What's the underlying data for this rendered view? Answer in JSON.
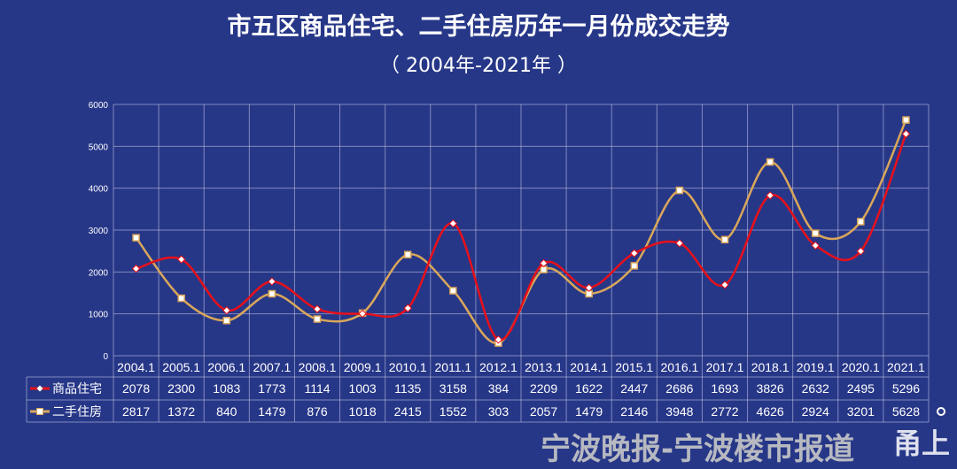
{
  "chart_data": {
    "type": "line",
    "title": "市五区商品住宅、二手住房历年一月份成交走势",
    "subtitle": "（ 2004年-2021年 ）",
    "categories": [
      "2004.1",
      "2005.1",
      "2006.1",
      "2007.1",
      "2008.1",
      "2009.1",
      "2010.1",
      "2011.1",
      "2012.1",
      "2013.1",
      "2014.1",
      "2015.1",
      "2016.1",
      "2017.1",
      "2018.1",
      "2019.1",
      "2020.1",
      "2021.1"
    ],
    "series": [
      {
        "name": "商品住宅",
        "color": "#e8101a",
        "marker": "diamond",
        "values": [
          2078,
          2300,
          1083,
          1773,
          1114,
          1003,
          1135,
          3158,
          384,
          2209,
          1622,
          2447,
          2686,
          1693,
          3826,
          2632,
          2495,
          5296
        ]
      },
      {
        "name": "二手住房",
        "color": "#d9a75a",
        "marker": "square",
        "values": [
          2817,
          1372,
          840,
          1479,
          876,
          1018,
          2415,
          1552,
          303,
          2057,
          1479,
          2146,
          3948,
          2772,
          4626,
          2924,
          3201,
          5628
        ]
      }
    ],
    "ylim": [
      0,
      6000
    ],
    "yticks": [
      0,
      1000,
      2000,
      3000,
      4000,
      5000,
      6000
    ],
    "grid": true,
    "legend": "data-table"
  },
  "watermark": {
    "text": "宁波晚报-宁波楼市报道",
    "logo": "宁波晚报",
    "brand": "甬上"
  }
}
